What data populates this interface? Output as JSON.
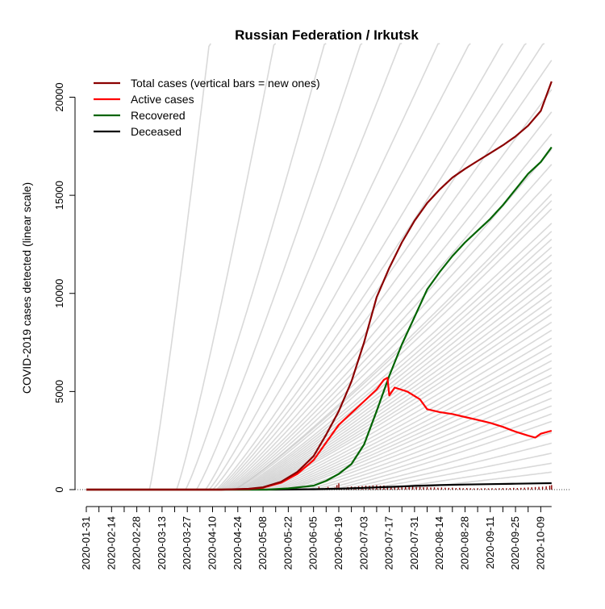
{
  "chart_data": {
    "type": "line",
    "title": "Russian Federation / Irkutsk",
    "xlabel": "",
    "ylabel": "COVID-2019 cases detected (linear scale)",
    "x_start": "2020-01-31",
    "x_end": "2020-10-15",
    "xlim": [
      "2020-01-31",
      "2020-10-16"
    ],
    "ylim": [
      0,
      21500
    ],
    "y_ticks": [
      0,
      5000,
      10000,
      15000,
      20000
    ],
    "x_tick_labels": [
      "2020-01-31",
      "2020-02-14",
      "2020-02-28",
      "2020-03-13",
      "2020-03-27",
      "2020-04-10",
      "2020-04-24",
      "2020-05-08",
      "2020-05-22",
      "2020-06-05",
      "2020-06-19",
      "2020-07-03",
      "2020-07-17",
      "2020-07-31",
      "2020-08-14",
      "2020-08-28",
      "2020-09-11",
      "2020-09-25",
      "2020-10-09"
    ],
    "legend_position": "top-left",
    "grid": false,
    "colors": {
      "total": "#8b0000",
      "active": "#ff0000",
      "recovered": "#006400",
      "deceased": "#000000",
      "background_regions": "#bfbfbf",
      "new_cases_bars": "#8b0000"
    },
    "legend": [
      {
        "key": "total",
        "label": "Total cases (vertical bars = new ones)"
      },
      {
        "key": "active",
        "label": "Active cases"
      },
      {
        "key": "recovered",
        "label": "Recovered"
      },
      {
        "key": "deceased",
        "label": "Deceased"
      }
    ],
    "series": [
      {
        "key": "total",
        "name": "Total cases (vertical bars = new ones)",
        "points": [
          [
            "2020-01-31",
            0
          ],
          [
            "2020-04-15",
            0
          ],
          [
            "2020-04-30",
            40
          ],
          [
            "2020-05-08",
            120
          ],
          [
            "2020-05-18",
            400
          ],
          [
            "2020-05-27",
            900
          ],
          [
            "2020-06-05",
            1700
          ],
          [
            "2020-06-12",
            2800
          ],
          [
            "2020-06-19",
            4000
          ],
          [
            "2020-06-26",
            5500
          ],
          [
            "2020-07-03",
            7500
          ],
          [
            "2020-07-10",
            9800
          ],
          [
            "2020-07-17",
            11300
          ],
          [
            "2020-07-24",
            12600
          ],
          [
            "2020-07-31",
            13700
          ],
          [
            "2020-08-07",
            14600
          ],
          [
            "2020-08-14",
            15300
          ],
          [
            "2020-08-21",
            15900
          ],
          [
            "2020-08-28",
            16350
          ],
          [
            "2020-09-04",
            16750
          ],
          [
            "2020-09-11",
            17150
          ],
          [
            "2020-09-18",
            17550
          ],
          [
            "2020-09-25",
            18000
          ],
          [
            "2020-10-02",
            18550
          ],
          [
            "2020-10-09",
            19300
          ],
          [
            "2020-10-15",
            20800
          ]
        ]
      },
      {
        "key": "active",
        "name": "Active cases",
        "points": [
          [
            "2020-01-31",
            0
          ],
          [
            "2020-04-15",
            0
          ],
          [
            "2020-04-30",
            30
          ],
          [
            "2020-05-08",
            100
          ],
          [
            "2020-05-18",
            350
          ],
          [
            "2020-05-27",
            800
          ],
          [
            "2020-06-05",
            1500
          ],
          [
            "2020-06-12",
            2400
          ],
          [
            "2020-06-19",
            3300
          ],
          [
            "2020-06-26",
            3900
          ],
          [
            "2020-07-03",
            4500
          ],
          [
            "2020-07-10",
            5100
          ],
          [
            "2020-07-14",
            5600
          ],
          [
            "2020-07-16",
            5700
          ],
          [
            "2020-07-17",
            4800
          ],
          [
            "2020-07-20",
            5200
          ],
          [
            "2020-07-27",
            5000
          ],
          [
            "2020-08-03",
            4600
          ],
          [
            "2020-08-07",
            4100
          ],
          [
            "2020-08-14",
            3950
          ],
          [
            "2020-08-21",
            3850
          ],
          [
            "2020-08-28",
            3700
          ],
          [
            "2020-09-04",
            3550
          ],
          [
            "2020-09-11",
            3400
          ],
          [
            "2020-09-18",
            3200
          ],
          [
            "2020-09-25",
            2950
          ],
          [
            "2020-10-02",
            2750
          ],
          [
            "2020-10-06",
            2650
          ],
          [
            "2020-10-09",
            2850
          ],
          [
            "2020-10-15",
            3000
          ]
        ]
      },
      {
        "key": "recovered",
        "name": "Recovered",
        "points": [
          [
            "2020-01-31",
            0
          ],
          [
            "2020-05-10",
            0
          ],
          [
            "2020-05-22",
            60
          ],
          [
            "2020-06-05",
            200
          ],
          [
            "2020-06-12",
            450
          ],
          [
            "2020-06-19",
            800
          ],
          [
            "2020-06-26",
            1300
          ],
          [
            "2020-07-03",
            2300
          ],
          [
            "2020-07-10",
            4000
          ],
          [
            "2020-07-17",
            5800
          ],
          [
            "2020-07-24",
            7400
          ],
          [
            "2020-07-31",
            8800
          ],
          [
            "2020-08-07",
            10200
          ],
          [
            "2020-08-14",
            11100
          ],
          [
            "2020-08-21",
            11900
          ],
          [
            "2020-08-28",
            12600
          ],
          [
            "2020-09-04",
            13200
          ],
          [
            "2020-09-11",
            13800
          ],
          [
            "2020-09-18",
            14500
          ],
          [
            "2020-09-25",
            15300
          ],
          [
            "2020-10-02",
            16100
          ],
          [
            "2020-10-09",
            16700
          ],
          [
            "2020-10-15",
            17450
          ]
        ]
      },
      {
        "key": "deceased",
        "name": "Deceased",
        "points": [
          [
            "2020-01-31",
            0
          ],
          [
            "2020-05-15",
            0
          ],
          [
            "2020-06-05",
            20
          ],
          [
            "2020-06-19",
            50
          ],
          [
            "2020-07-03",
            90
          ],
          [
            "2020-07-17",
            140
          ],
          [
            "2020-07-31",
            190
          ],
          [
            "2020-08-14",
            230
          ],
          [
            "2020-08-28",
            260
          ],
          [
            "2020-09-11",
            280
          ],
          [
            "2020-09-25",
            300
          ],
          [
            "2020-10-09",
            320
          ],
          [
            "2020-10-15",
            330
          ]
        ]
      }
    ],
    "new_cases_bars": {
      "points": [
        [
          "2020-06-05",
          30
        ],
        [
          "2020-06-08",
          150
        ],
        [
          "2020-06-10",
          60
        ],
        [
          "2020-06-12",
          90
        ],
        [
          "2020-06-13",
          140
        ],
        [
          "2020-06-15",
          50
        ],
        [
          "2020-06-17",
          110
        ],
        [
          "2020-06-18",
          230
        ],
        [
          "2020-06-19",
          320
        ],
        [
          "2020-06-20",
          80
        ],
        [
          "2020-06-22",
          100
        ],
        [
          "2020-06-24",
          130
        ],
        [
          "2020-06-26",
          160
        ],
        [
          "2020-06-28",
          140
        ],
        [
          "2020-06-30",
          170
        ],
        [
          "2020-07-02",
          180
        ],
        [
          "2020-07-04",
          200
        ],
        [
          "2020-07-06",
          190
        ],
        [
          "2020-07-08",
          210
        ],
        [
          "2020-07-10",
          220
        ],
        [
          "2020-07-12",
          200
        ],
        [
          "2020-07-14",
          210
        ],
        [
          "2020-07-16",
          190
        ],
        [
          "2020-07-18",
          180
        ],
        [
          "2020-07-20",
          170
        ],
        [
          "2020-07-22",
          160
        ],
        [
          "2020-07-24",
          160
        ],
        [
          "2020-07-26",
          150
        ],
        [
          "2020-07-28",
          140
        ],
        [
          "2020-07-30",
          150
        ],
        [
          "2020-08-01",
          130
        ],
        [
          "2020-08-03",
          140
        ],
        [
          "2020-08-05",
          120
        ],
        [
          "2020-08-07",
          130
        ],
        [
          "2020-08-09",
          110
        ],
        [
          "2020-08-11",
          120
        ],
        [
          "2020-08-13",
          100
        ],
        [
          "2020-08-15",
          110
        ],
        [
          "2020-08-17",
          100
        ],
        [
          "2020-08-19",
          90
        ],
        [
          "2020-08-21",
          100
        ],
        [
          "2020-08-23",
          80
        ],
        [
          "2020-08-25",
          90
        ],
        [
          "2020-08-27",
          70
        ],
        [
          "2020-08-29",
          80
        ],
        [
          "2020-08-31",
          70
        ],
        [
          "2020-09-02",
          60
        ],
        [
          "2020-09-04",
          70
        ],
        [
          "2020-09-06",
          60
        ],
        [
          "2020-09-08",
          70
        ],
        [
          "2020-09-10",
          60
        ],
        [
          "2020-09-12",
          70
        ],
        [
          "2020-09-14",
          60
        ],
        [
          "2020-09-16",
          70
        ],
        [
          "2020-09-18",
          80
        ],
        [
          "2020-09-20",
          70
        ],
        [
          "2020-09-22",
          80
        ],
        [
          "2020-09-24",
          90
        ],
        [
          "2020-09-26",
          80
        ],
        [
          "2020-09-28",
          90
        ],
        [
          "2020-09-30",
          100
        ],
        [
          "2020-10-02",
          110
        ],
        [
          "2020-10-04",
          120
        ],
        [
          "2020-10-06",
          130
        ],
        [
          "2020-10-08",
          140
        ],
        [
          "2020-10-10",
          150
        ],
        [
          "2020-10-12",
          170
        ],
        [
          "2020-10-14",
          200
        ],
        [
          "2020-10-15",
          230
        ]
      ]
    },
    "background_regions": [
      {
        "onset": "2020-03-06",
        "growth": 450
      },
      {
        "onset": "2020-03-21",
        "growth": 260
      },
      {
        "onset": "2020-03-26",
        "growth": 175
      },
      {
        "onset": "2020-04-01",
        "growth": 145
      },
      {
        "onset": "2020-04-06",
        "growth": 120
      },
      {
        "onset": "2020-04-08",
        "growth": 100
      },
      {
        "onset": "2020-04-10",
        "growth": 88
      },
      {
        "onset": "2020-04-12",
        "growth": 78
      },
      {
        "onset": "2020-04-13",
        "growth": 72
      },
      {
        "onset": "2020-04-14",
        "growth": 68
      },
      {
        "onset": "2020-04-15",
        "growth": 64
      },
      {
        "onset": "2020-04-16",
        "growth": 60
      },
      {
        "onset": "2020-04-17",
        "growth": 57
      },
      {
        "onset": "2020-04-18",
        "growth": 54
      },
      {
        "onset": "2020-04-19",
        "growth": 52
      },
      {
        "onset": "2020-04-20",
        "growth": 50
      },
      {
        "onset": "2020-04-21",
        "growth": 48
      },
      {
        "onset": "2020-04-22",
        "growth": 46
      },
      {
        "onset": "2020-04-22",
        "growth": 45
      },
      {
        "onset": "2020-04-23",
        "growth": 44
      },
      {
        "onset": "2020-04-24",
        "growth": 42
      },
      {
        "onset": "2020-04-25",
        "growth": 41
      },
      {
        "onset": "2020-04-26",
        "growth": 40
      },
      {
        "onset": "2020-04-27",
        "growth": 39
      },
      {
        "onset": "2020-04-28",
        "growth": 38
      },
      {
        "onset": "2020-04-29",
        "growth": 37
      },
      {
        "onset": "2020-04-30",
        "growth": 36
      },
      {
        "onset": "2020-05-01",
        "growth": 35
      },
      {
        "onset": "2020-05-02",
        "growth": 34
      },
      {
        "onset": "2020-05-03",
        "growth": 33
      },
      {
        "onset": "2020-05-04",
        "growth": 32
      },
      {
        "onset": "2020-05-05",
        "growth": 31
      },
      {
        "onset": "2020-05-06",
        "growth": 30
      },
      {
        "onset": "2020-05-08",
        "growth": 29
      },
      {
        "onset": "2020-05-10",
        "growth": 28
      },
      {
        "onset": "2020-05-12",
        "growth": 27
      },
      {
        "onset": "2020-05-14",
        "growth": 26
      },
      {
        "onset": "2020-05-16",
        "growth": 25
      },
      {
        "onset": "2020-05-18",
        "growth": 24
      },
      {
        "onset": "2020-05-20",
        "growth": 23
      },
      {
        "onset": "2020-05-22",
        "growth": 22
      },
      {
        "onset": "2020-05-25",
        "growth": 21
      },
      {
        "onset": "2020-05-28",
        "growth": 20
      },
      {
        "onset": "2020-06-01",
        "growth": 19
      },
      {
        "onset": "2020-06-05",
        "growth": 18
      },
      {
        "onset": "2020-06-10",
        "growth": 17
      },
      {
        "onset": "2020-06-15",
        "growth": 16
      },
      {
        "onset": "2020-06-20",
        "growth": 14
      },
      {
        "onset": "2020-06-25",
        "growth": 12
      },
      {
        "onset": "2020-07-01",
        "growth": 10
      },
      {
        "onset": "2020-07-10",
        "growth": 8
      },
      {
        "onset": "2020-07-20",
        "growth": 6
      }
    ]
  }
}
